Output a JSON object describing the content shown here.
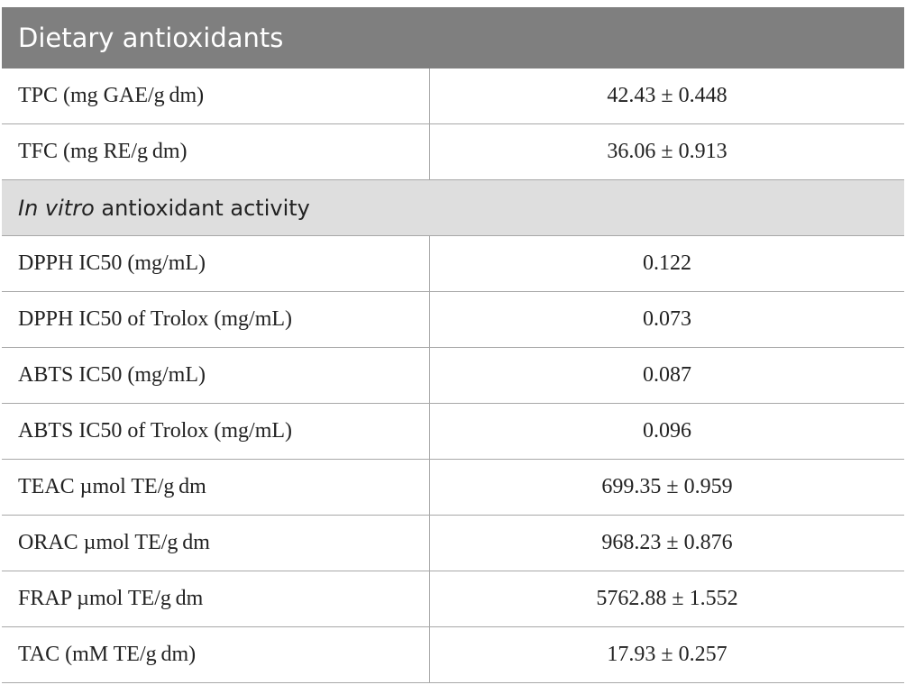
{
  "header": {
    "title": "Dietary antioxidants"
  },
  "table": {
    "groups": [
      {
        "rows": [
          [
            "TPC (mg GAE/g dm)",
            "42.43 ± 0.448"
          ],
          [
            "TFC (mg RE/g dm)",
            "36.06 ± 0.913"
          ]
        ]
      },
      {
        "heading": {
          "italic": "In vitro",
          "text": "antioxidant activity"
        },
        "rows": [
          [
            "DPPH IC50 (mg/mL)",
            "0.122"
          ],
          [
            "DPPH IC50 of Trolox (mg/mL)",
            "0.073"
          ],
          [
            "ABTS IC50 (mg/mL)",
            "0.087"
          ],
          [
            "ABTS IC50 of Trolox (mg/mL)",
            "0.096"
          ],
          [
            "TEAC µmol TE/g dm",
            "699.35 ± 0.959"
          ],
          [
            "ORAC µmol TE/g dm",
            "968.23 ± 0.876"
          ],
          [
            "FRAP µmol TE/g dm",
            "5762.88 ± 1.552"
          ],
          [
            "TAC (mM TE/g dm)",
            "17.93 ± 0.257"
          ]
        ]
      }
    ]
  }
}
